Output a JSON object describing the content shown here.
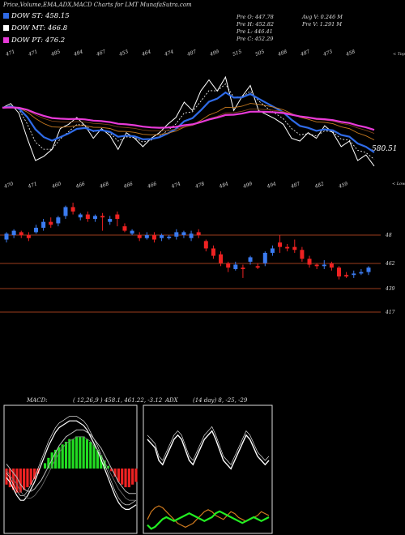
{
  "title": "Price,Volume,EMA,ADX,MACD Charts for LMT MunafaSutra.com",
  "legend": [
    {
      "label": "DOW ST: 458.15",
      "color": "#2f6be8"
    },
    {
      "label": "DOW MT: 466.8",
      "color": "#ffffff"
    },
    {
      "label": "DOW PT: 476.2",
      "color": "#e83ad8"
    }
  ],
  "stats": {
    "col1": [
      "Pre  O: 447.78",
      "Pre  H: 452.82",
      "Pre  L: 446.41",
      "Pre  C: 452.29"
    ],
    "col2": [
      "Avg V: 0.246  M",
      "Pre  V: 1.291 M"
    ]
  },
  "colors": {
    "up": "#3b7bf0",
    "down": "#ee2222",
    "line_support": "#9b3b1c"
  },
  "chart_data": [
    {
      "type": "line",
      "name": "price-ema-panel",
      "top_ticks": [
        "471",
        "471",
        "485",
        "484",
        "467",
        "453",
        "464",
        "474",
        "487",
        "499",
        "515",
        "505",
        "488",
        "487",
        "473",
        "458"
      ],
      "bottom_ticks": [
        "470",
        "471",
        "460",
        "466",
        "468",
        "466",
        "466",
        "474",
        "478",
        "484",
        "499",
        "494",
        "487",
        "482",
        "459"
      ],
      "label_topright": "< Top",
      "label_bottomright": "< Lower",
      "value_label": "580.51",
      "series": [
        {
          "name": "price",
          "values": [
            500,
            503,
            496,
            478,
            462,
            465,
            470,
            485,
            488,
            493,
            487,
            478,
            485,
            480,
            470,
            482,
            478,
            472,
            478,
            482,
            488,
            493,
            504,
            498,
            512,
            520,
            512,
            522,
            498,
            508,
            516,
            498,
            495,
            492,
            488,
            478,
            476,
            482,
            478,
            487,
            482,
            472,
            476,
            462,
            466,
            458
          ]
        }
      ]
    },
    {
      "type": "bar",
      "name": "candles-panel",
      "levels": [
        "48",
        "462",
        "439",
        "417"
      ],
      "candles": [
        {
          "o": 471,
          "c": 475,
          "h": 476,
          "l": 469
        },
        {
          "o": 474,
          "c": 477,
          "h": 478,
          "l": 472
        },
        {
          "o": 476,
          "c": 474,
          "h": 477,
          "l": 472
        },
        {
          "o": 474,
          "c": 472,
          "h": 476,
          "l": 470
        },
        {
          "o": 476,
          "c": 479,
          "h": 481,
          "l": 475
        },
        {
          "o": 479,
          "c": 483,
          "h": 485,
          "l": 477
        },
        {
          "o": 483,
          "c": 481,
          "h": 486,
          "l": 479
        },
        {
          "o": 482,
          "c": 486,
          "h": 487,
          "l": 480
        },
        {
          "o": 487,
          "c": 493,
          "h": 494,
          "l": 485
        },
        {
          "o": 493,
          "c": 490,
          "h": 496,
          "l": 488
        },
        {
          "o": 486,
          "c": 488,
          "h": 489,
          "l": 484
        },
        {
          "o": 488,
          "c": 485,
          "h": 490,
          "l": 483
        },
        {
          "o": 485,
          "c": 487,
          "h": 488,
          "l": 483
        },
        {
          "o": 487,
          "c": 486,
          "h": 489,
          "l": 477
        },
        {
          "o": 483,
          "c": 485,
          "h": 487,
          "l": 481
        },
        {
          "o": 488,
          "c": 485,
          "h": 490,
          "l": 480
        },
        {
          "o": 480,
          "c": 477,
          "h": 482,
          "l": 476
        },
        {
          "o": 475,
          "c": 477,
          "h": 478,
          "l": 474
        },
        {
          "o": 474,
          "c": 472,
          "h": 476,
          "l": 470
        },
        {
          "o": 472,
          "c": 474,
          "h": 476,
          "l": 471
        },
        {
          "o": 474,
          "c": 471,
          "h": 476,
          "l": 469
        },
        {
          "o": 472,
          "c": 474,
          "h": 475,
          "l": 470
        },
        {
          "o": 472,
          "c": 473,
          "h": 474,
          "l": 471
        },
        {
          "o": 473,
          "c": 476,
          "h": 478,
          "l": 471
        },
        {
          "o": 474,
          "c": 476,
          "h": 477,
          "l": 472
        },
        {
          "o": 472,
          "c": 475,
          "h": 477,
          "l": 470
        },
        {
          "o": 476,
          "c": 474,
          "h": 478,
          "l": 472
        },
        {
          "o": 470,
          "c": 465,
          "h": 471,
          "l": 463
        },
        {
          "o": 465,
          "c": 460,
          "h": 467,
          "l": 458
        },
        {
          "o": 461,
          "c": 455,
          "h": 463,
          "l": 453
        },
        {
          "o": 455,
          "c": 452,
          "h": 456,
          "l": 449
        },
        {
          "o": 451,
          "c": 454,
          "h": 456,
          "l": 450
        },
        {
          "o": 452,
          "c": 451,
          "h": 454,
          "l": 445
        },
        {
          "o": 456,
          "c": 459,
          "h": 460,
          "l": 454
        },
        {
          "o": 453,
          "c": 452,
          "h": 455,
          "l": 451
        },
        {
          "o": 455,
          "c": 462,
          "h": 463,
          "l": 453
        },
        {
          "o": 462,
          "c": 465,
          "h": 467,
          "l": 460
        },
        {
          "o": 469,
          "c": 466,
          "h": 474,
          "l": 462
        },
        {
          "o": 466,
          "c": 465,
          "h": 468,
          "l": 463
        },
        {
          "o": 466,
          "c": 464,
          "h": 471,
          "l": 462
        },
        {
          "o": 464,
          "c": 458,
          "h": 466,
          "l": 456
        },
        {
          "o": 458,
          "c": 454,
          "h": 460,
          "l": 452
        },
        {
          "o": 454,
          "c": 453,
          "h": 455,
          "l": 451
        },
        {
          "o": 453,
          "c": 454,
          "h": 457,
          "l": 451
        },
        {
          "o": 455,
          "c": 452,
          "h": 456,
          "l": 450
        },
        {
          "o": 452,
          "c": 446,
          "h": 453,
          "l": 444
        },
        {
          "o": 447,
          "c": 446,
          "h": 449,
          "l": 445
        },
        {
          "o": 447,
          "c": 448,
          "h": 450,
          "l": 445
        },
        {
          "o": 448,
          "c": 449,
          "h": 451,
          "l": 447
        },
        {
          "o": 449,
          "c": 452,
          "h": 453,
          "l": 447
        }
      ]
    },
    {
      "type": "bar",
      "name": "macd-panel",
      "label": "MACD:",
      "params": "( 12,26,9 ) 458.1,  461.22,  -3.12",
      "histogram": [
        -6,
        -7,
        -8,
        -9,
        -9,
        -8,
        -7,
        -6,
        -4,
        -2,
        0,
        2,
        4,
        6,
        7,
        8,
        9,
        10,
        11,
        11,
        12,
        12,
        12,
        11,
        10,
        9,
        7,
        5,
        3,
        1,
        -1,
        -3,
        -5,
        -6,
        -7,
        -7,
        -6,
        -5
      ],
      "series": [
        {
          "values": [
            -4,
            -6,
            -9,
            -12,
            -14,
            -14,
            -12,
            -9,
            -6,
            -2,
            2,
            6,
            10,
            13,
            16,
            18,
            19,
            20,
            21,
            21,
            21,
            20,
            19,
            17,
            14,
            11,
            8,
            4,
            0,
            -4,
            -8,
            -12,
            -15,
            -17,
            -18,
            -18,
            -17,
            -16
          ]
        },
        {
          "values": [
            2,
            0,
            -2,
            -4,
            -7,
            -9,
            -10,
            -10,
            -9,
            -7,
            -5,
            -2,
            1,
            4,
            7,
            10,
            12,
            14,
            15,
            16,
            17,
            17,
            17,
            16,
            15,
            13,
            11,
            9,
            6,
            3,
            0,
            -3,
            -6,
            -8,
            -10,
            -11,
            -11,
            -11
          ]
        }
      ]
    },
    {
      "type": "line",
      "name": "adx-panel",
      "label": "ADX",
      "params": "(14  day) 8,  -25,  -29",
      "series": [
        {
          "values": [
            30,
            28,
            26,
            20,
            18,
            22,
            26,
            30,
            32,
            30,
            25,
            20,
            18,
            22,
            26,
            30,
            32,
            34,
            30,
            25,
            20,
            18,
            16,
            20,
            24,
            28,
            32,
            30,
            26,
            22,
            20,
            18,
            20
          ]
        },
        {
          "values": [
            8,
            12,
            14,
            15,
            14,
            12,
            10,
            8,
            6,
            5,
            4,
            5,
            6,
            8,
            10,
            12,
            13,
            12,
            10,
            9,
            8,
            10,
            12,
            11,
            9,
            8,
            7,
            8,
            9,
            10,
            12,
            11,
            10
          ]
        },
        {
          "values": [
            6,
            4,
            5,
            7,
            9,
            10,
            9,
            8,
            9,
            10,
            11,
            12,
            11,
            10,
            9,
            8,
            9,
            10,
            12,
            13,
            12,
            11,
            10,
            9,
            8,
            7,
            8,
            9,
            10,
            9,
            8,
            9,
            10
          ]
        }
      ]
    }
  ]
}
